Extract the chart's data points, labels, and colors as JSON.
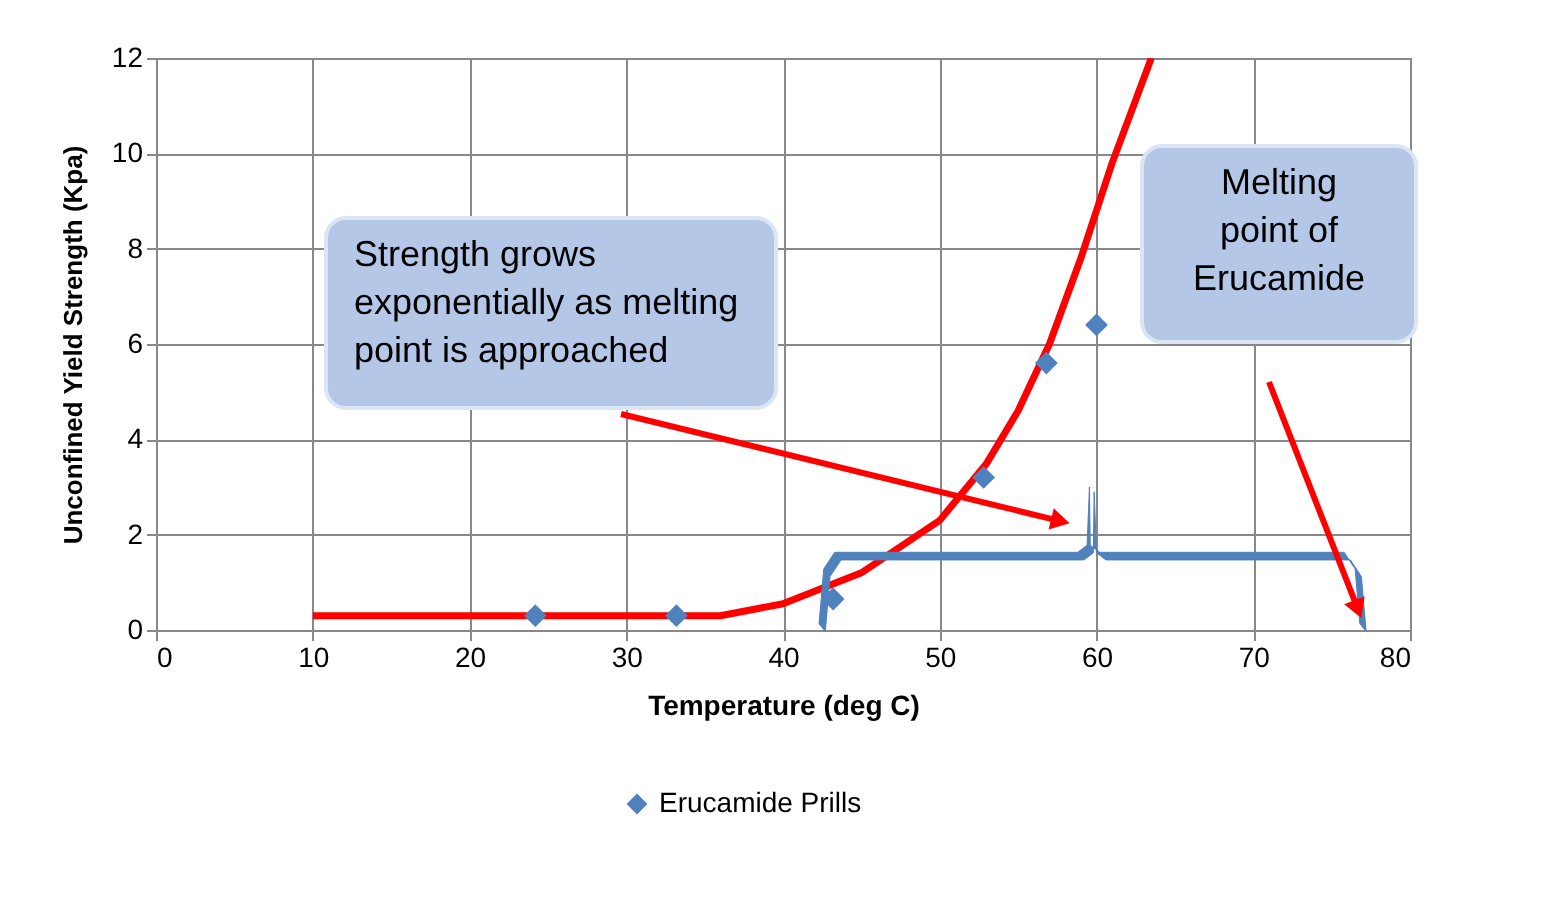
{
  "chart_data": {
    "type": "scatter",
    "xlabel": "Temperature (deg C)",
    "ylabel": "Unconfined Yield Strength (Kpa)",
    "xlim": [
      0,
      80
    ],
    "xticks": [
      0,
      10,
      20,
      30,
      40,
      50,
      60,
      70,
      80
    ],
    "ylim": [
      0,
      12
    ],
    "yticks": [
      0,
      2,
      4,
      6,
      8,
      10,
      12
    ],
    "grid": true,
    "legend": "bottom",
    "marker": "diamond",
    "series": [
      {
        "name": "Erucamide Prills",
        "type": "scatter",
        "color": "#4f81bd",
        "x": [
          24.2,
          33.2,
          43.2,
          52.8,
          56.8,
          60.0
        ],
        "values": [
          0.3,
          0.3,
          0.65,
          3.2,
          5.6,
          6.4
        ]
      },
      {
        "type": "line",
        "marker": "none",
        "color": "#ff0000",
        "x": [
          10,
          20,
          30,
          36,
          40,
          45,
          50,
          53,
          55,
          57,
          59,
          61,
          63.5
        ],
        "values": [
          0.3,
          0.3,
          0.3,
          0.3,
          0.55,
          1.2,
          2.3,
          3.5,
          4.6,
          6.0,
          7.8,
          9.8,
          12
        ]
      }
    ],
    "annotations": [
      "Strength grows exponentially as melting point is approached",
      "Melting point of Erucamide"
    ]
  }
}
